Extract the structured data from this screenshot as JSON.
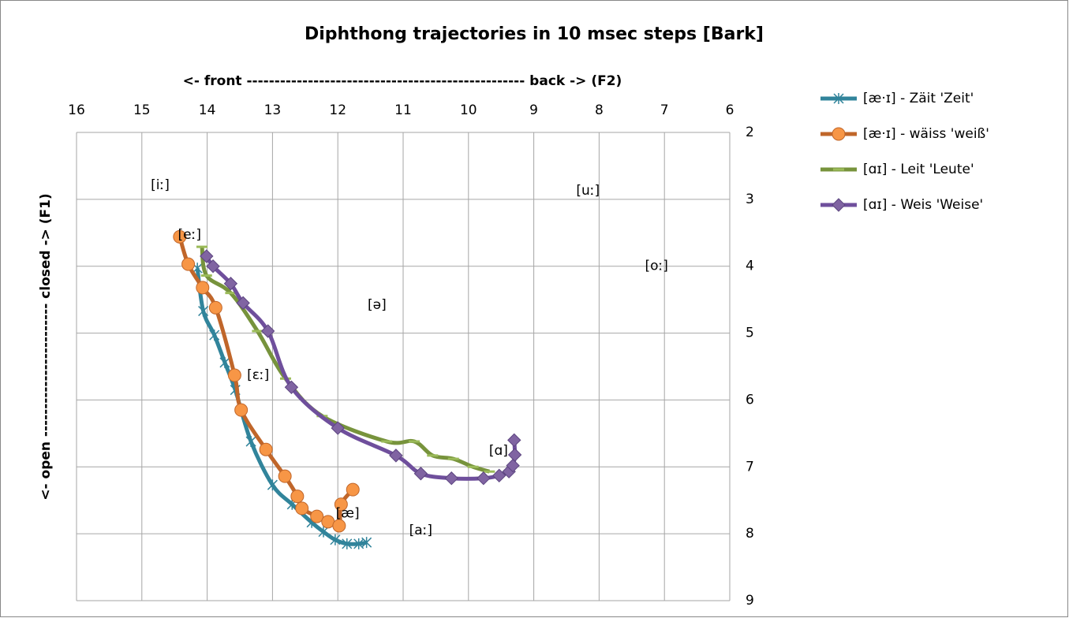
{
  "chart_data": {
    "type": "line",
    "title": "Diphthong trajectories in 10 msec steps [Bark]",
    "x_label": "<- front -------------------------------------------------- back -> (F2)",
    "y_label": "<- open ------------------------ closed -> (F1)",
    "xlim": [
      16,
      6
    ],
    "ylim": [
      9,
      2
    ],
    "xticks": [
      16,
      15,
      14,
      13,
      12,
      11,
      10,
      9,
      8,
      7,
      6
    ],
    "yticks": [
      2,
      3,
      4,
      5,
      6,
      7,
      8,
      9
    ],
    "grid": true,
    "legend": "right",
    "series": [
      {
        "name": "[æ·ɪ] - Zäit 'Zeit'",
        "color": "#31849b",
        "marker": "asterisk",
        "x": [
          14.15,
          14.06,
          13.89,
          13.73,
          13.57,
          13.33,
          13.0,
          12.7,
          12.4,
          12.22,
          12.04,
          11.86,
          11.68,
          11.56
        ],
        "values": [
          4.03,
          4.67,
          5.03,
          5.44,
          5.85,
          6.62,
          7.27,
          7.56,
          7.83,
          7.97,
          8.09,
          8.15,
          8.15,
          8.13
        ]
      },
      {
        "name": "[æ·ɪ] - wäiss 'weiß'",
        "color": "#c0662a",
        "marker": "circle",
        "x": [
          14.42,
          14.29,
          14.07,
          13.87,
          13.58,
          13.48,
          13.1,
          12.81,
          12.62,
          12.55,
          12.32,
          12.15,
          11.98,
          11.95,
          11.77
        ],
        "values": [
          3.56,
          3.97,
          4.32,
          4.62,
          5.63,
          6.15,
          6.74,
          7.14,
          7.44,
          7.62,
          7.74,
          7.82,
          7.88,
          7.56,
          7.34
        ]
      },
      {
        "name": "[ɑɪ] - Leit 'Leute'",
        "color": "#77933c",
        "marker": "dash",
        "x": [
          14.08,
          14.01,
          13.64,
          13.23,
          12.8,
          12.24,
          11.25,
          10.83,
          10.55,
          10.23,
          9.93,
          9.68
        ],
        "values": [
          3.71,
          4.14,
          4.4,
          4.97,
          5.68,
          6.24,
          6.62,
          6.62,
          6.83,
          6.88,
          7.0,
          7.07
        ]
      },
      {
        "name": "[ɑɪ] - Weis 'Weise'",
        "color": "#6f4f9c",
        "marker": "diamond",
        "x": [
          14.01,
          13.91,
          13.64,
          13.45,
          13.07,
          12.71,
          12.0,
          11.11,
          10.73,
          10.26,
          9.77,
          9.53,
          9.38,
          9.32,
          9.29,
          9.3
        ],
        "values": [
          3.85,
          4.0,
          4.26,
          4.55,
          4.97,
          5.81,
          6.42,
          6.83,
          7.1,
          7.17,
          7.17,
          7.13,
          7.07,
          6.98,
          6.82,
          6.6
        ]
      }
    ],
    "annotations": [
      {
        "text": "[iː]",
        "x": 14.72,
        "y": 2.79
      },
      {
        "text": "[uː]",
        "x": 8.17,
        "y": 2.87
      },
      {
        "text": "[eː]",
        "x": 14.27,
        "y": 3.53
      },
      {
        "text": "[oː]",
        "x": 7.12,
        "y": 4.0
      },
      {
        "text": "[ə]",
        "x": 11.4,
        "y": 4.58
      },
      {
        "text": "[ɛː]",
        "x": 13.22,
        "y": 5.63
      },
      {
        "text": "[ɑ]",
        "x": 9.54,
        "y": 6.76
      },
      {
        "text": "[æ]",
        "x": 11.85,
        "y": 7.7
      },
      {
        "text": "[aː]",
        "x": 10.73,
        "y": 7.95
      }
    ]
  }
}
